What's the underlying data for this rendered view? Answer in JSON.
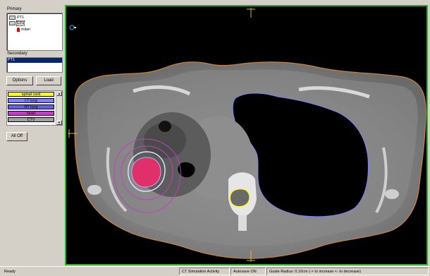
{
  "left_panel": {
    "primary_label": "Primary",
    "primary_tree": [
      {
        "label": "PT1",
        "icon": "image-series-icon"
      },
      {
        "label": "CT1",
        "icon": "image-series-icon",
        "selected": true
      },
      {
        "label": "milan",
        "icon": "patient-icon"
      }
    ],
    "secondary_label": "Secondary",
    "secondary_selected": "PT1",
    "options_label": "Options",
    "load_label": "Load",
    "structures": [
      {
        "label": "spinal cord",
        "color": "#ffff00"
      },
      {
        "label": "LT lung",
        "color": "#8080ff"
      },
      {
        "label": "RT lung",
        "color": "#6060ff"
      },
      {
        "label": "heart",
        "color": "#c040c0"
      },
      {
        "label": "CTV",
        "color": "#a0a0a0"
      }
    ],
    "all_off_label": "All Off"
  },
  "colors": {
    "viewport_border": "#2ab02a",
    "body_contour": "#c8823c",
    "lung_contour": "#8080ff",
    "cord_contour": "#ffff00",
    "ptv_contour": "#c040c0",
    "tumor_fill": "#e0306a",
    "crosshair": "#d2b450"
  },
  "status_bar": {
    "ready": "Ready",
    "activity": "CT Simulation Activity",
    "autosave": "Autosave ON",
    "guide": "Guide Radius: 0.10cm (-> to increase <- to decrease)"
  }
}
